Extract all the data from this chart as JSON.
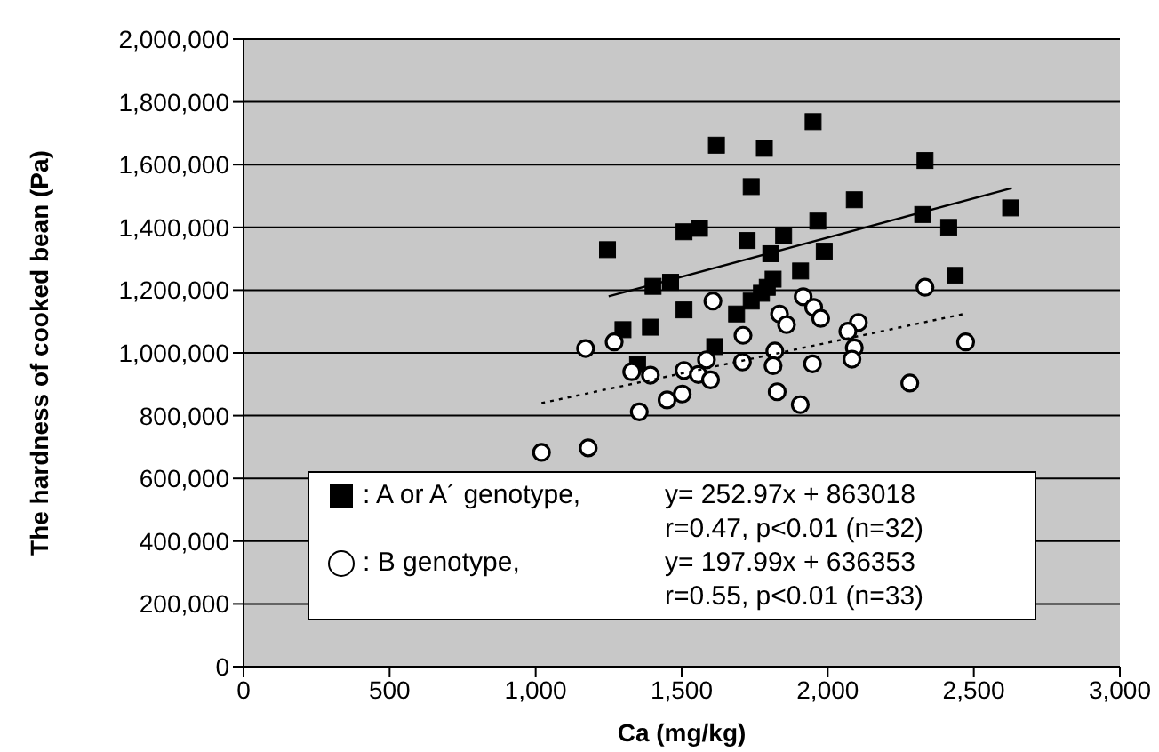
{
  "chart_data": {
    "type": "scatter",
    "xlabel": "Ca (mg/kg)",
    "ylabel": "The hardness of cooked bean (Pa)",
    "xlim": [
      0,
      3000
    ],
    "xticks": [
      0,
      500,
      {
        "value": 1000,
        "label": "1,000"
      },
      {
        "value": 1500,
        "label": "1,500"
      },
      {
        "value": 2000,
        "label": "2,000"
      },
      {
        "value": 2500,
        "label": "2,500"
      },
      {
        "value": 3000,
        "label": "3,000"
      }
    ],
    "ylim": [
      0,
      2000000
    ],
    "yticks": [
      0,
      {
        "value": 200000,
        "label": "200,000"
      },
      {
        "value": 400000,
        "label": "400,000"
      },
      {
        "value": 600000,
        "label": "600,000"
      },
      {
        "value": 800000,
        "label": "800,000"
      },
      {
        "value": 1000000,
        "label": "1,000,000"
      },
      {
        "value": 1200000,
        "label": "1,200,000"
      },
      {
        "value": 1400000,
        "label": "1,400,000"
      },
      {
        "value": 1600000,
        "label": "1,600,000"
      },
      {
        "value": 1800000,
        "label": "1,800,000"
      },
      {
        "value": 2000000,
        "label": "2,000,000"
      }
    ],
    "grid": "y",
    "legend": "bottom",
    "annotations": [
      "y= 252.97x + 863018",
      "r=0.47, p<0.01 (n=32)",
      "y= 197.99x + 636353",
      "r=0.55, p<0.01 (n=33)"
    ],
    "series": [
      {
        "name": ": A or A´ genotype,",
        "color": "#000000",
        "marker": "square",
        "x": [
          1246,
          1508,
          1402,
          1462,
          1508,
          1299,
          1393,
          1349,
          1950,
          1619,
          1783,
          2333,
          1738,
          2091,
          2626,
          2325,
          1561,
          1966,
          2414,
          1849,
          1724,
          1805,
          1988,
          1907,
          2436,
          1813,
          1793,
          1773,
          1738,
          1688,
          1613
        ],
        "values": [
          1329000,
          1386000,
          1212000,
          1225000,
          1137000,
          1074000,
          1082000,
          963000,
          1737000,
          1662000,
          1652000,
          1613000,
          1530000,
          1488000,
          1462000,
          1441000,
          1397000,
          1420000,
          1400000,
          1373000,
          1358000,
          1316000,
          1324000,
          1261000,
          1247000,
          1235000,
          1209000,
          1190000,
          1165000,
          1124000,
          1020000
        ]
      },
      {
        "name": ": B genotype,",
        "color": "#ffffff",
        "marker": "circle",
        "x": [
          1171,
          1269,
          1329,
          1393,
          1508,
          1450,
          1502,
          1355,
          1020,
          1180,
          1607,
          2333,
          1916,
          1952,
          1976,
          1835,
          1859,
          1710,
          2105,
          2069,
          2091,
          2083,
          2472,
          1819,
          1813,
          1948,
          1708,
          1585,
          1557,
          1599,
          2281,
          1827,
          1906
        ],
        "values": [
          1014000,
          1035000,
          940000,
          929000,
          944000,
          850000,
          869000,
          812000,
          683000,
          697000,
          1165000,
          1209000,
          1179000,
          1145000,
          1110000,
          1124000,
          1090000,
          1056000,
          1097000,
          1069000,
          1016000,
          980000,
          1035000,
          1006000,
          959000,
          965000,
          971000,
          978000,
          931000,
          914000,
          904000,
          876000,
          835000
        ]
      },
      {
        "type": "line",
        "color": "#000000",
        "marker": "none",
        "line_style": "solid",
        "x": [
          1250,
          2630
        ],
        "values": [
          1180000,
          1525000
        ]
      },
      {
        "type": "line",
        "color": "#000000",
        "marker": "none",
        "line_style": "dotted",
        "x": [
          1020,
          2470
        ],
        "values": [
          840000,
          1125000
        ]
      }
    ]
  }
}
